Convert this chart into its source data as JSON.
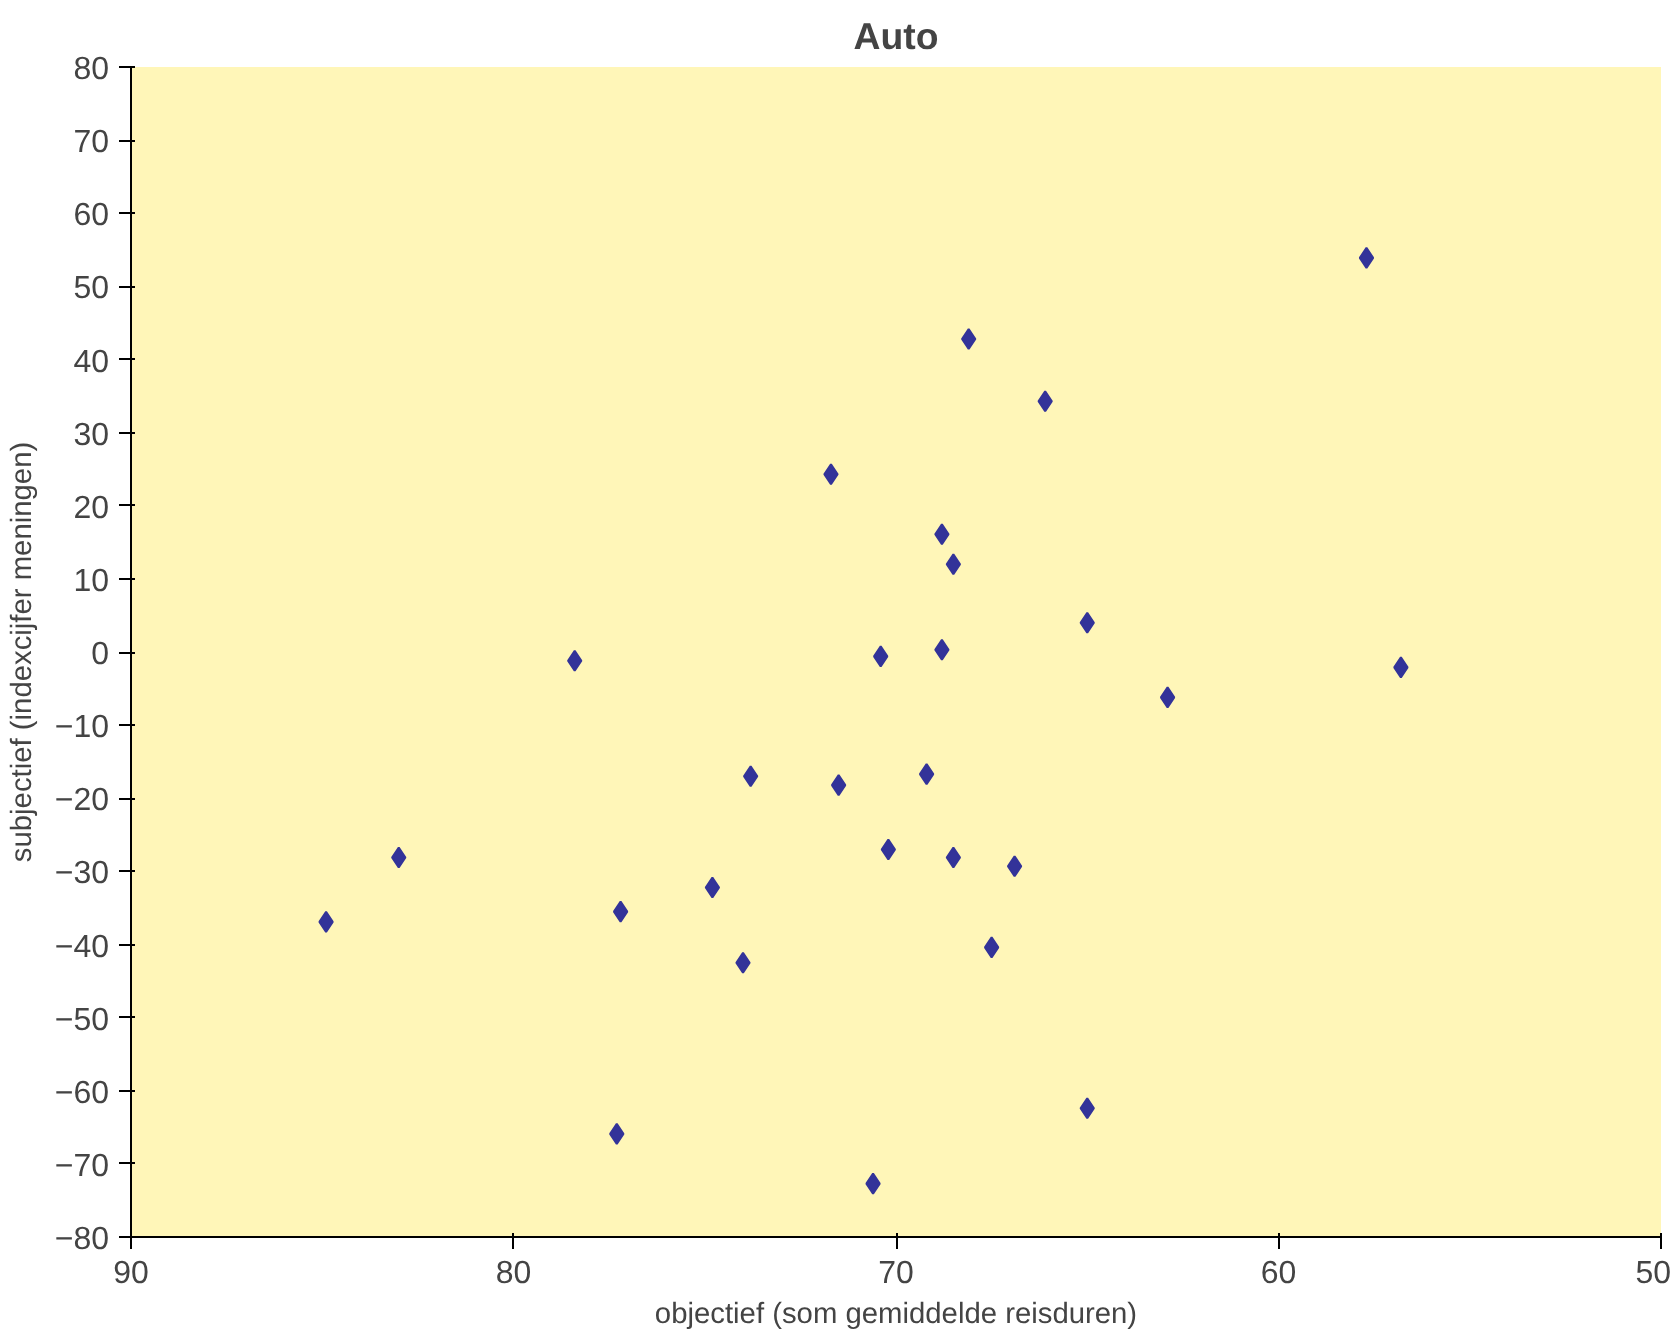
{
  "chart_data": {
    "type": "scatter",
    "title": "Auto",
    "xlabel": "objectief (som gemiddelde reisduren)",
    "ylabel": "subjectief (indexcijfer meningen)",
    "x": [
      57.7,
      68.1,
      66.1,
      71.7,
      68.8,
      68.5,
      65.0,
      70.4,
      68.8,
      78.4,
      56.8,
      62.9,
      73.8,
      71.5,
      69.2,
      83.0,
      70.2,
      68.5,
      66.9,
      74.8,
      84.9,
      77.2,
      67.5,
      74.0,
      65.0,
      77.3,
      70.6
    ],
    "series": [
      {
        "color": "#333399",
        "values": [
          53.9,
          42.8,
          34.3,
          24.3,
          16.1,
          12,
          4,
          -0.6,
          0.3,
          -1.2,
          -2.1,
          -6.2,
          -17,
          -18.2,
          -16.7,
          -28.1,
          -27,
          -28.1,
          -29.3,
          -32.2,
          -36.9,
          -35.5,
          -40.4,
          -42.5,
          -62.4,
          -65.9,
          -72.7
        ]
      }
    ],
    "xlim": [
      90,
      50
    ],
    "xticks": [
      90,
      80,
      70,
      60,
      50
    ],
    "ylim": [
      -80,
      80
    ],
    "yticks": [
      -80,
      -70,
      -60,
      -50,
      -40,
      -30,
      -20,
      -10,
      0,
      10,
      20,
      30,
      40,
      50,
      60,
      70,
      80
    ],
    "marker": "diamond",
    "grid": false
  }
}
